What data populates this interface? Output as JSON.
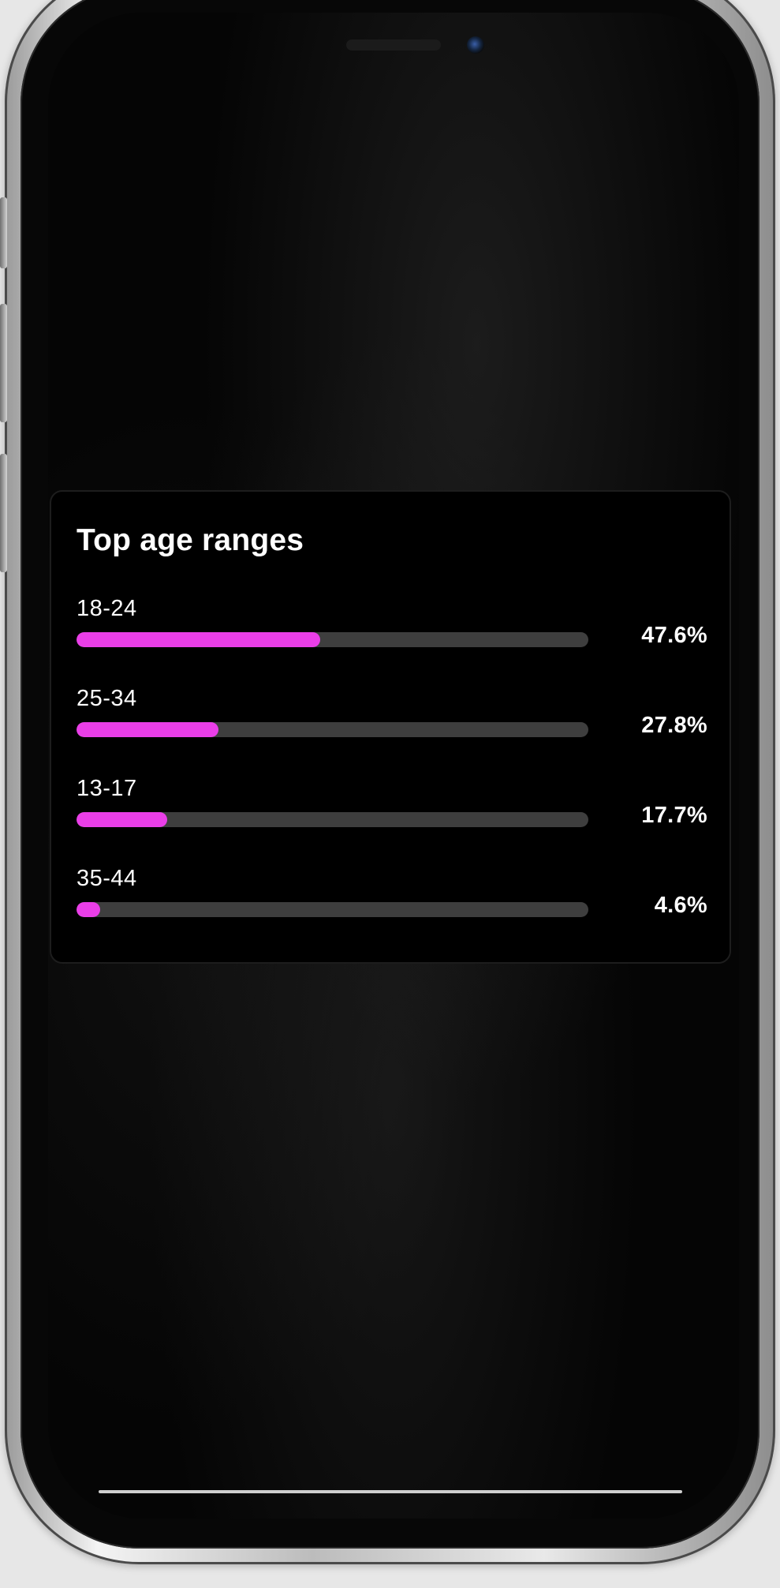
{
  "card": {
    "title": "Top age ranges",
    "rows": [
      {
        "label": "18-24",
        "value_text": "47.6%",
        "percent": 47.6
      },
      {
        "label": "25-34",
        "value_text": "27.8%",
        "percent": 27.8
      },
      {
        "label": "13-17",
        "value_text": "17.7%",
        "percent": 17.7
      },
      {
        "label": "35-44",
        "value_text": "4.6%",
        "percent": 4.6
      }
    ]
  },
  "colors": {
    "accent": "#ea3ee8",
    "track": "#3e3e3e",
    "card_background": "#000000",
    "text": "#ffffff"
  }
}
